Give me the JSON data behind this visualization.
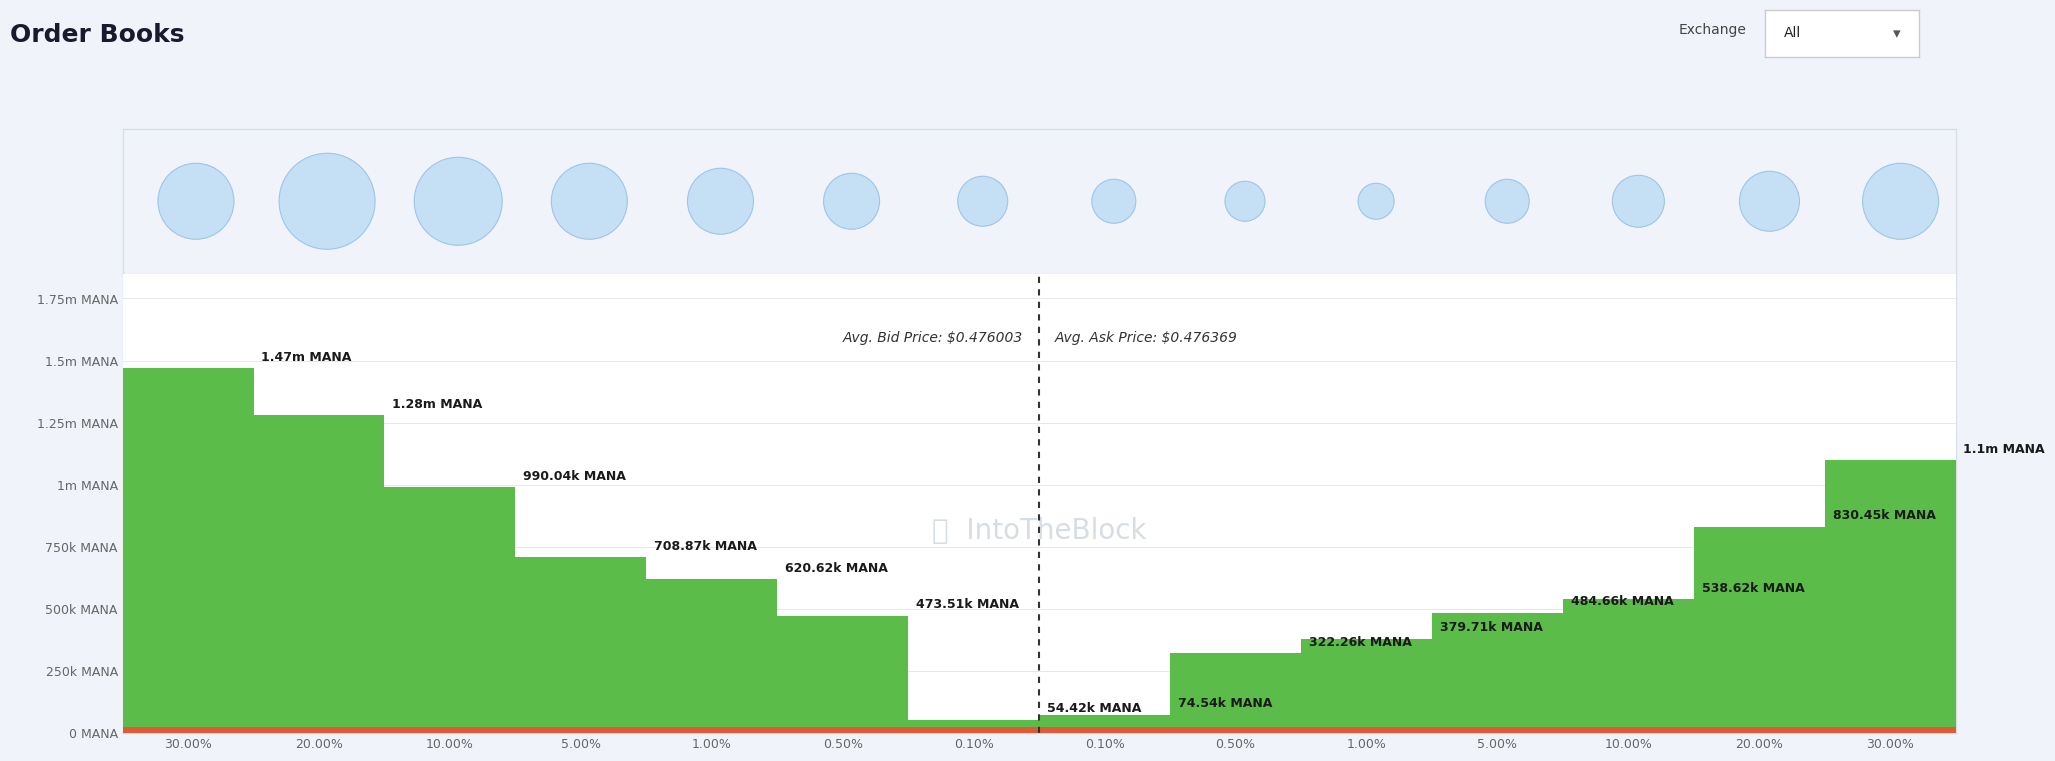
{
  "title": "Order Books",
  "exchange_label": "Exchange",
  "exchange_value": "All",
  "avg_bid_price_label": "Avg. Bid Price: $0.476003",
  "avg_ask_price_label": "Avg. Ask Price: $0.476369",
  "watermark_text": "IntoTheBlock",
  "page_bg": "#f0f4fa",
  "chart_bg": "#ffffff",
  "bid_color": "#5bbc4a",
  "ask_color": "#5bbc4a",
  "base_color": "#e05a3a",
  "bid_labels": [
    "1.47m MANA",
    "1.28m MANA",
    "990.04k MANA",
    "708.87k MANA",
    "620.62k MANA",
    "473.51k MANA",
    "54.42k MANA"
  ],
  "ask_labels": [
    "74.54k MANA",
    "322.26k MANA",
    "379.71k MANA",
    "484.66k MANA",
    "538.62k MANA",
    "830.45k MANA",
    "1.1m MANA"
  ],
  "bid_x_labels": [
    "30.00%",
    "20.00%",
    "10.00%",
    "5.00%",
    "1.00%",
    "0.50%",
    "0.10%"
  ],
  "ask_x_labels": [
    "0.10%",
    "0.50%",
    "1.00%",
    "5.00%",
    "10.00%",
    "20.00%",
    "30.00%"
  ],
  "y_ticks_vals": [
    0,
    250000,
    500000,
    750000,
    1000000,
    1250000,
    1500000,
    1750000
  ],
  "y_ticks_labels": [
    "0 MANA",
    "250k MANA",
    "500k MANA",
    "750k MANA",
    "1m MANA",
    "1.25m MANA",
    "1.5m MANA",
    "1.75m MANA"
  ],
  "bid_values": [
    1470000,
    1280000,
    990040,
    708870,
    620620,
    473510,
    54420
  ],
  "ask_values": [
    74540,
    322260,
    379710,
    484660,
    538620,
    830450,
    1100000
  ],
  "bubble_radii": [
    38,
    48,
    44,
    38,
    33,
    28,
    25,
    22,
    20,
    18,
    22,
    26,
    30,
    38
  ],
  "bubble_color": "#c5dff5",
  "bubble_edge_color": "#9ec5e8",
  "ylim_max": 1850000,
  "title_fontsize": 18,
  "label_fontsize": 9,
  "tick_fontsize": 9,
  "annot_fontsize": 10
}
